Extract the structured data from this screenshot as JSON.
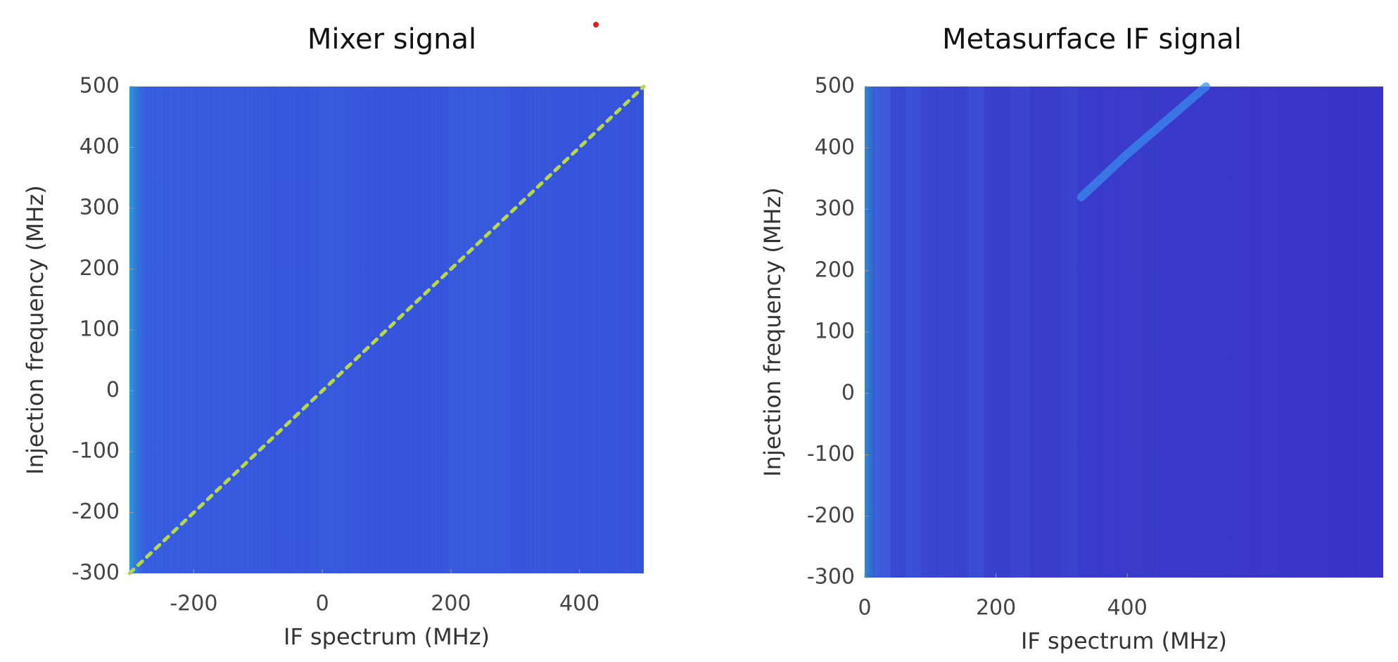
{
  "chart_data": [
    {
      "type": "heatmap",
      "title": "Mixer signal",
      "x_label": "IF spectrum (MHz)",
      "y_label": "Injection frequency (MHz)",
      "xlim": [
        -300,
        500
      ],
      "ylim": [
        -300,
        500
      ],
      "xticks": [
        -200,
        0,
        200,
        400
      ],
      "yticks": [
        -300,
        -200,
        -100,
        0,
        100,
        200,
        300,
        400,
        500
      ],
      "color": "#3654dc",
      "series": [
        {
          "color": "#b8d84a",
          "x": [
            -300,
            -200,
            -100,
            0,
            100,
            200,
            300,
            400,
            500
          ],
          "values": [
            -300,
            -200,
            -100,
            0,
            100,
            200,
            300,
            400,
            500
          ]
        }
      ]
    },
    {
      "type": "heatmap",
      "title": "Metasurface IF signal",
      "x_label": "IF spectrum (MHz)",
      "y_label": "Injection frequency (MHz)",
      "xlim": [
        0,
        790
      ],
      "ylim": [
        -300,
        500
      ],
      "xticks": [
        0,
        200,
        400
      ],
      "yticks": [
        -300,
        -200,
        -100,
        0,
        100,
        200,
        300,
        400,
        500
      ],
      "color": "#3a34c8",
      "series": [
        {
          "color": "#3a8ef0",
          "x": [
            330,
            400,
            520
          ],
          "values": [
            320,
            390,
            500
          ]
        }
      ]
    }
  ]
}
